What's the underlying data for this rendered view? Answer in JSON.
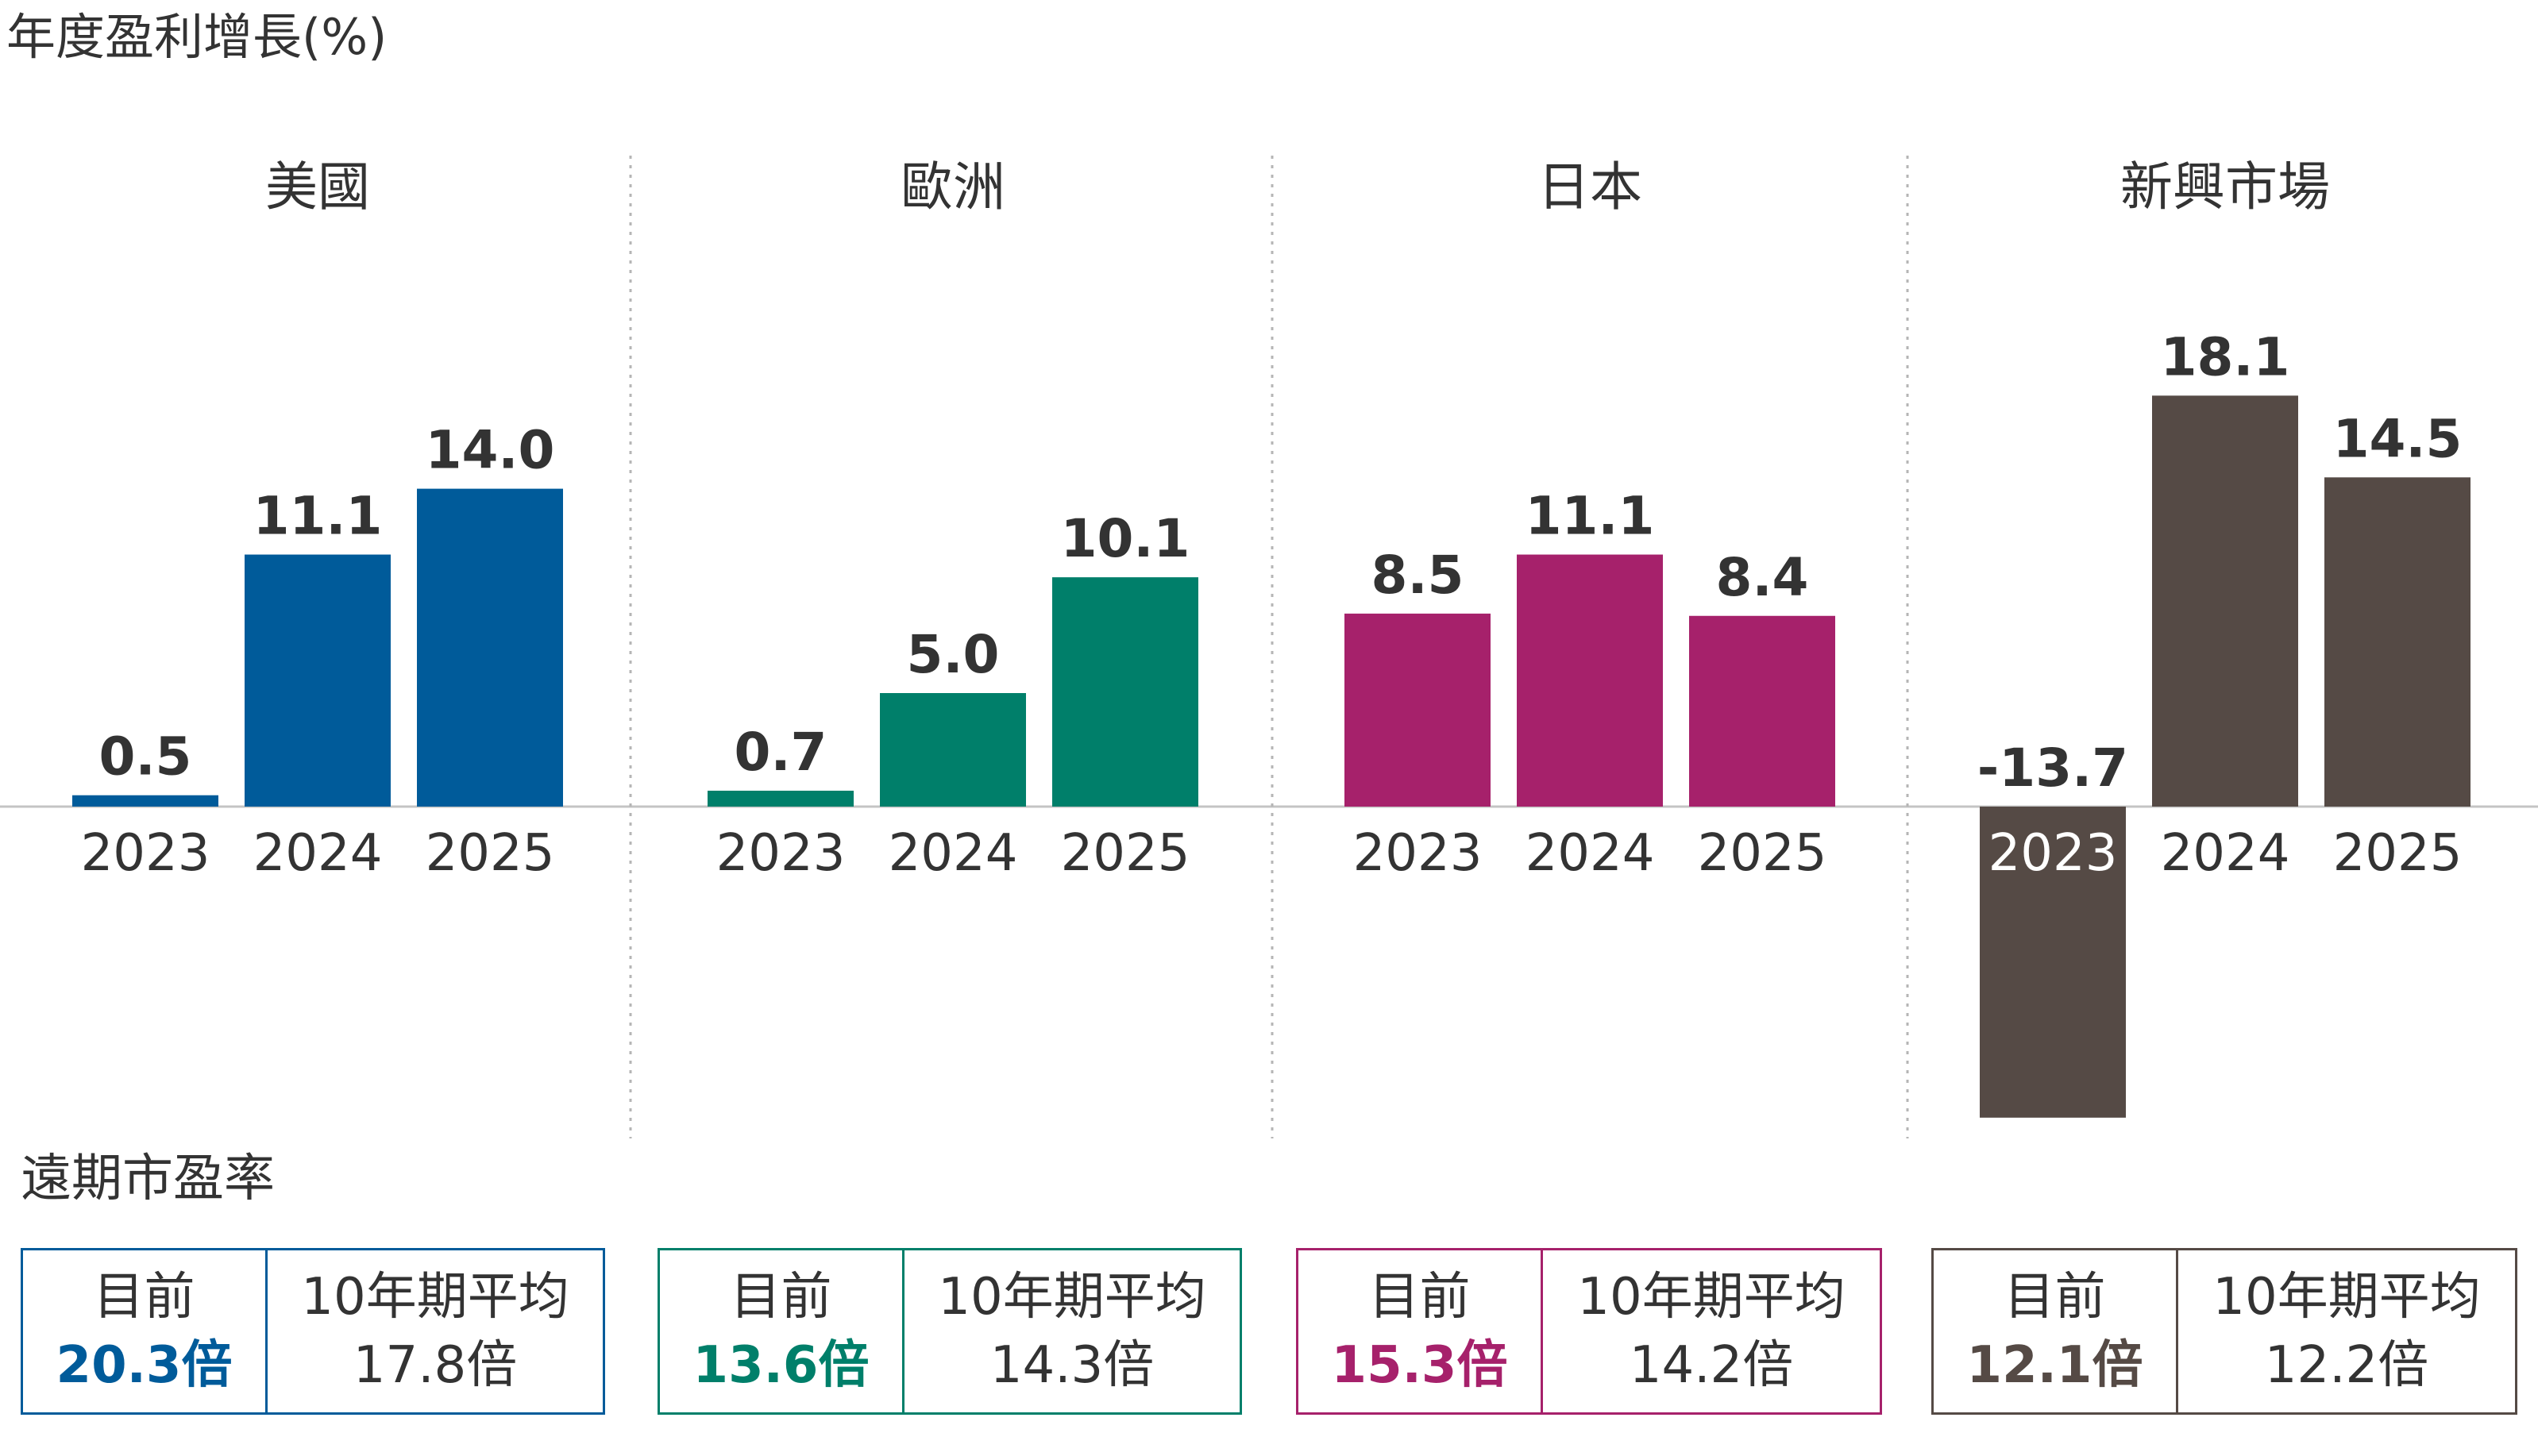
{
  "title": "年度盈利增長(%)",
  "pe_section_title": "遠期市盈率",
  "colors": {
    "axis": "#c4c4c4",
    "divider": "#b5b5b5",
    "text": "#333333"
  },
  "chart_data": [
    {
      "type": "bar",
      "title": "美國",
      "categories": [
        "2023",
        "2024",
        "2025"
      ],
      "values": [
        0.5,
        11.1,
        14.0
      ],
      "value_labels": [
        "0.5",
        "11.1",
        "14.0"
      ],
      "color": "#005b9a"
    },
    {
      "type": "bar",
      "title": "歐洲",
      "categories": [
        "2023",
        "2024",
        "2025"
      ],
      "values": [
        0.7,
        5.0,
        10.1
      ],
      "value_labels": [
        "0.7",
        "5.0",
        "10.1"
      ],
      "color": "#007f6a"
    },
    {
      "type": "bar",
      "title": "日本",
      "categories": [
        "2023",
        "2024",
        "2025"
      ],
      "values": [
        8.5,
        11.1,
        8.4
      ],
      "value_labels": [
        "8.5",
        "11.1",
        "8.4"
      ],
      "color": "#a6216b"
    },
    {
      "type": "bar",
      "title": "新興市場",
      "categories": [
        "2023",
        "2024",
        "2025"
      ],
      "values": [
        -13.7,
        18.1,
        14.5
      ],
      "value_labels": [
        "-13.7",
        "18.1",
        "14.5"
      ],
      "color": "#554a45"
    }
  ],
  "pe": [
    {
      "region": "美國",
      "current_label": "目前",
      "current_value": "20.3倍",
      "avg_label": "10年期平均",
      "avg_value": "17.8倍",
      "color": "#005b9a"
    },
    {
      "region": "歐洲",
      "current_label": "目前",
      "current_value": "13.6倍",
      "avg_label": "10年期平均",
      "avg_value": "14.3倍",
      "color": "#007f6a"
    },
    {
      "region": "日本",
      "current_label": "目前",
      "current_value": "15.3倍",
      "avg_label": "10年期平均",
      "avg_value": "14.2倍",
      "color": "#a6216b"
    },
    {
      "region": "新興市場",
      "current_label": "目前",
      "current_value": "12.1倍",
      "avg_label": "10年期平均",
      "avg_value": "12.2倍",
      "color": "#554a45"
    }
  ]
}
